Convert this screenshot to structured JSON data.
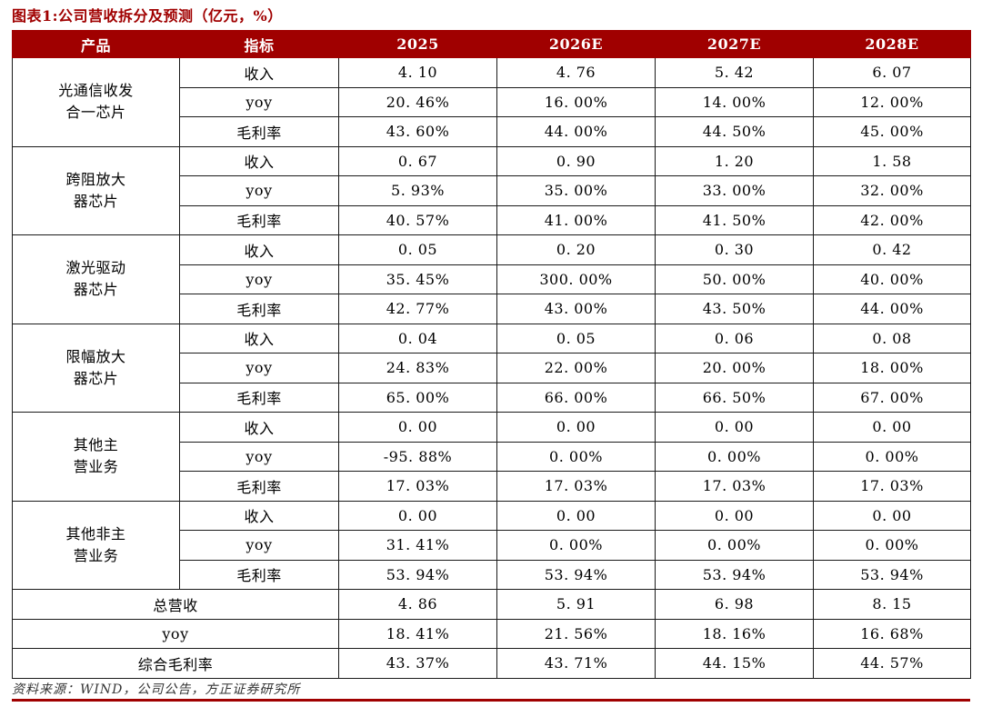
{
  "colors": {
    "accent": "#A00000",
    "header_text": "#FFFFFF",
    "border": "#1A1A1A",
    "source_text": "#333333"
  },
  "source_note": "资料来源：WIND，公司公告，方正证券研究所",
  "chart_data": {
    "type": "table",
    "title": "图表1:公司营收拆分及预测（亿元，%）",
    "columns": [
      "产品",
      "指标",
      "2025",
      "2026E",
      "2027E",
      "2028E"
    ],
    "groups": [
      {
        "product": "光通信收发合一芯片",
        "product_lines": [
          "光通信收发",
          "合一芯片"
        ],
        "rows": [
          {
            "metric": "收入",
            "values": [
              "4.10",
              "4.76",
              "5.42",
              "6.07"
            ]
          },
          {
            "metric": "yoy",
            "values": [
              "20.46%",
              "16.00%",
              "14.00%",
              "12.00%"
            ]
          },
          {
            "metric": "毛利率",
            "values": [
              "43.60%",
              "44.00%",
              "44.50%",
              "45.00%"
            ]
          }
        ]
      },
      {
        "product": "跨阻放大器芯片",
        "product_lines": [
          "跨阻放大",
          "器芯片"
        ],
        "rows": [
          {
            "metric": "收入",
            "values": [
              "0.67",
              "0.90",
              "1.20",
              "1.58"
            ]
          },
          {
            "metric": "yoy",
            "values": [
              "5.93%",
              "35.00%",
              "33.00%",
              "32.00%"
            ]
          },
          {
            "metric": "毛利率",
            "values": [
              "40.57%",
              "41.00%",
              "41.50%",
              "42.00%"
            ]
          }
        ]
      },
      {
        "product": "激光驱动器芯片",
        "product_lines": [
          "激光驱动",
          "器芯片"
        ],
        "rows": [
          {
            "metric": "收入",
            "values": [
              "0.05",
              "0.20",
              "0.30",
              "0.42"
            ]
          },
          {
            "metric": "yoy",
            "values": [
              "35.45%",
              "300.00%",
              "50.00%",
              "40.00%"
            ]
          },
          {
            "metric": "毛利率",
            "values": [
              "42.77%",
              "43.00%",
              "43.50%",
              "44.00%"
            ]
          }
        ]
      },
      {
        "product": "限幅放大器芯片",
        "product_lines": [
          "限幅放大",
          "器芯片"
        ],
        "rows": [
          {
            "metric": "收入",
            "values": [
              "0.04",
              "0.05",
              "0.06",
              "0.08"
            ]
          },
          {
            "metric": "yoy",
            "values": [
              "24.83%",
              "22.00%",
              "20.00%",
              "18.00%"
            ]
          },
          {
            "metric": "毛利率",
            "values": [
              "65.00%",
              "66.00%",
              "66.50%",
              "67.00%"
            ]
          }
        ]
      },
      {
        "product": "其他主营业务",
        "product_lines": [
          "其他主",
          "营业务"
        ],
        "rows": [
          {
            "metric": "收入",
            "values": [
              "0.00",
              "0.00",
              "0.00",
              "0.00"
            ]
          },
          {
            "metric": "yoy",
            "values": [
              "-95.88%",
              "0.00%",
              "0.00%",
              "0.00%"
            ]
          },
          {
            "metric": "毛利率",
            "values": [
              "17.03%",
              "17.03%",
              "17.03%",
              "17.03%"
            ]
          }
        ]
      },
      {
        "product": "其他非主营业务",
        "product_lines": [
          "其他非主",
          "营业务"
        ],
        "rows": [
          {
            "metric": "收入",
            "values": [
              "0.00",
              "0.00",
              "0.00",
              "0.00"
            ]
          },
          {
            "metric": "yoy",
            "values": [
              "31.41%",
              "0.00%",
              "0.00%",
              "0.00%"
            ]
          },
          {
            "metric": "毛利率",
            "values": [
              "53.94%",
              "53.94%",
              "53.94%",
              "53.94%"
            ]
          }
        ]
      }
    ],
    "summary": [
      {
        "label": "总营收",
        "values": [
          "4.86",
          "5.91",
          "6.98",
          "8.15"
        ]
      },
      {
        "label": "yoy",
        "values": [
          "18.41%",
          "21.56%",
          "18.16%",
          "16.68%"
        ]
      },
      {
        "label": "综合毛利率",
        "values": [
          "43.37%",
          "43.71%",
          "44.15%",
          "44.57%"
        ]
      }
    ]
  }
}
